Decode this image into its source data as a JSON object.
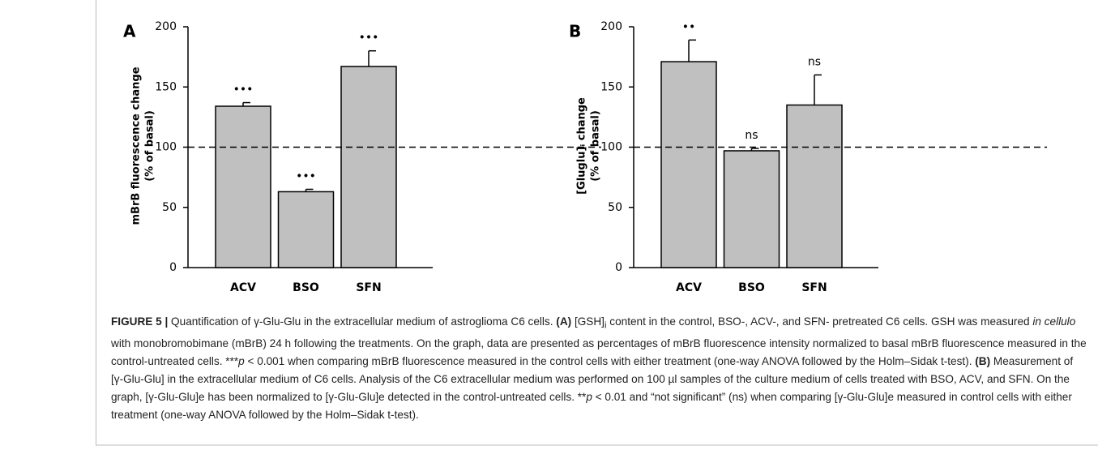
{
  "chart_data": [
    {
      "type": "bar",
      "panel": "A",
      "ylabel": [
        "mBrB fluorescence change",
        "(% of basal)"
      ],
      "categories": [
        "ACV",
        "BSO",
        "SFN"
      ],
      "values": [
        134,
        63,
        167
      ],
      "errors": [
        3,
        2,
        13
      ],
      "annotations": [
        "•••",
        "•••",
        "•••"
      ],
      "reference_line": 100,
      "color": "#c0c0c0",
      "ylim": [
        0,
        200
      ],
      "yticks": [
        0,
        50,
        100,
        150,
        200
      ]
    },
    {
      "type": "bar",
      "panel": "B",
      "ylabel": [
        "[Gluglu]ᵢ change",
        "(% of basal)"
      ],
      "categories": [
        "ACV",
        "BSO",
        "SFN"
      ],
      "values": [
        171,
        97,
        135
      ],
      "errors": [
        18,
        2,
        25
      ],
      "annotations": [
        "••",
        "ns",
        "ns"
      ],
      "reference_line": 100,
      "color": "#c0c0c0",
      "ylim": [
        0,
        200
      ],
      "yticks": [
        0,
        50,
        100,
        150,
        200
      ]
    }
  ],
  "caption": [
    "FIGURE 5 |",
    " Quantification of γ-Glu-Glu in the extracellular medium of astroglioma C6 cells. ",
    "(A)",
    " [GSH]",
    "i",
    " content in the control, BSO-, ACV-, and SFN- pretreated C6 cells. GSH was measured ",
    "in cellulo",
    " with monobromobimane (mBrB) 24 h following the treatments. On the graph, data are presented as percentages of mBrB fluorescence intensity normalized to basal mBrB fluorescence measured in the control-untreated cells. ***",
    "p",
    " < 0.001 when comparing mBrB fluorescence measured in the control cells with either treatment (one-way ANOVA followed by the Holm–Sidak t-test). ",
    "(B)",
    " Measurement of [γ-Glu-Glu] in the extracellular medium of C6 cells. Analysis of the C6 extracellular medium was performed on 100 µl samples of the culture medium of cells treated with BSO, ACV, and SFN. On the graph, [γ-Glu-Glu]e has been normalized to [γ-Glu-Glu]e detected in the control-untreated cells. **",
    "p",
    " < 0.01 and “not significant” (ns) when comparing [γ-Glu-Glu]e measured in control cells with either treatment (one-way ANOVA followed by the Holm–Sidak t-test)."
  ]
}
